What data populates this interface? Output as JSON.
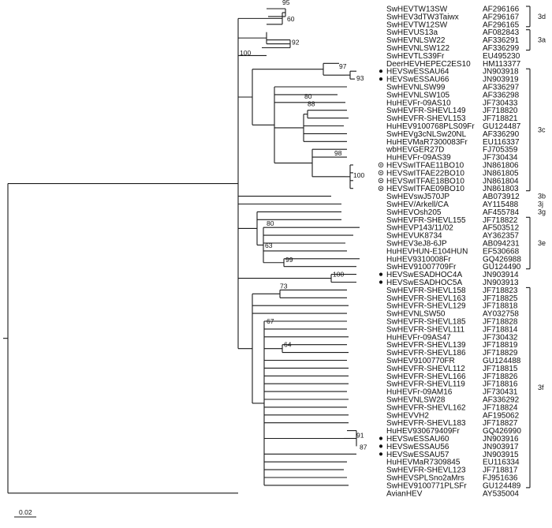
{
  "figure": {
    "scale_bar_label": "0.02"
  },
  "taxa": [
    {
      "name": "SwHEVTW13SW",
      "acc": "AF296166"
    },
    {
      "name": "SwHEV3dTW3Taiwx",
      "acc": "AF296167"
    },
    {
      "name": "SwHEVTW12SW",
      "acc": "AF296165"
    },
    {
      "name": "SwHEVUS13a",
      "acc": "AF082843"
    },
    {
      "name": "SwHEVNLSW22",
      "acc": "AF336291"
    },
    {
      "name": "SwHEVNLSW122",
      "acc": "AF336299"
    },
    {
      "name": "SwHEVTLS39Fr",
      "acc": "EU495230"
    },
    {
      "name": "DeerHEVHEPEC2ES10",
      "acc": "HM113377"
    },
    {
      "name": "HEVSwESSAU64",
      "acc": "JN903918",
      "mark": "dot"
    },
    {
      "name": "HEVSwESSAU66",
      "acc": "JN903919",
      "mark": "dot"
    },
    {
      "name": "SwHEVNLSW99",
      "acc": "AF336297"
    },
    {
      "name": "SwHEVNLSW105",
      "acc": "AF336298"
    },
    {
      "name": "HuHEVFr-09AS10",
      "acc": "JF730433"
    },
    {
      "name": "SwHEVFR-SHEVL149",
      "acc": "JF718820"
    },
    {
      "name": "SwHEVFR-SHEVL153",
      "acc": "JF718821"
    },
    {
      "name": "HuHEV9100768PLS09Fr",
      "acc": "GU124487"
    },
    {
      "name": "SwHEVg3cNLSw20NL",
      "acc": "AF336290"
    },
    {
      "name": "HuHEVMaR7300083Fr",
      "acc": "EU116337"
    },
    {
      "name": "wbHEVGER27D",
      "acc": "FJ705359"
    },
    {
      "name": "HuHEVFr-09AS39",
      "acc": "JF730434"
    },
    {
      "name": "HEVSwITFAE11BO10",
      "acc": "JN861806",
      "mark": "ring"
    },
    {
      "name": "HEVSwITFAE22BO10",
      "acc": "JN861805",
      "mark": "ring"
    },
    {
      "name": "HEVSwITFAE18BO10",
      "acc": "JN861804",
      "mark": "ring"
    },
    {
      "name": "HEVSwITFAE09BO10",
      "acc": "JN861803",
      "mark": "ring"
    },
    {
      "name": "SwHEVswJ570JP",
      "acc": "AB073912"
    },
    {
      "name": "SwHEV/Arkell/CA",
      "acc": "AY115488"
    },
    {
      "name": "SwHEVOsh205",
      "acc": "AF455784"
    },
    {
      "name": "SwHEVFR-SHEVL155",
      "acc": "JF718822"
    },
    {
      "name": "SwHEVP143/11/02",
      "acc": "AF503512"
    },
    {
      "name": "SwHEVUK8734",
      "acc": "AY362357"
    },
    {
      "name": "SwHEV3eJ8-6JP",
      "acc": "AB094231"
    },
    {
      "name": "HuHEVHUN-E104HUN",
      "acc": "EF530668"
    },
    {
      "name": "HuHEV9310008Fr",
      "acc": "GQ426988"
    },
    {
      "name": "SwHEV91007709Fr",
      "acc": "GU124490"
    },
    {
      "name": "HEVSwESADHOC4A",
      "acc": "JN903914",
      "mark": "dot"
    },
    {
      "name": "HEVSwESADHOC5A",
      "acc": "JN903913",
      "mark": "dot"
    },
    {
      "name": "SwHEVFR-SHEVL158",
      "acc": "JF718823"
    },
    {
      "name": "SwHEVFR-SHEVL163",
      "acc": "JF718825"
    },
    {
      "name": "SwHEVFR-SHEVL129",
      "acc": "JF718818"
    },
    {
      "name": "SwHEVNLSW50",
      "acc": "AY032758"
    },
    {
      "name": "SwHEVFR-SHEVL185",
      "acc": "JF718828"
    },
    {
      "name": "SwHEVFR-SHEVL111",
      "acc": "JF718814"
    },
    {
      "name": "HuHEVFr-09AS47",
      "acc": "JF730432"
    },
    {
      "name": "SwHEVFR-SHEVL139",
      "acc": "JF718819"
    },
    {
      "name": "SwHEVFR-SHEVL186",
      "acc": "JF718829"
    },
    {
      "name": "SwHEV9100770FR",
      "acc": "GU124488"
    },
    {
      "name": "SwHEVFR-SHEVL112",
      "acc": "JF718815"
    },
    {
      "name": "SwHEVFR-SHEVL166",
      "acc": "JF718826"
    },
    {
      "name": "SwHEVFR-SHEVL119",
      "acc": "JF718816"
    },
    {
      "name": "HuHEVFr-09AM16",
      "acc": "JF730431"
    },
    {
      "name": "SwHEVNLSW28",
      "acc": "AF336292"
    },
    {
      "name": "SwHEVFR-SHEVL162",
      "acc": "JF718824"
    },
    {
      "name": "SwHEVVH2",
      "acc": "AF195062"
    },
    {
      "name": "SwHEVFR-SHEVL183",
      "acc": "JF718827"
    },
    {
      "name": "HuHEV930679409Fr",
      "acc": "GQ426990"
    },
    {
      "name": "HEVSwESSAU60",
      "acc": "JN903916",
      "mark": "dot"
    },
    {
      "name": "HEVSwESSAU56",
      "acc": "JN903917",
      "mark": "dot"
    },
    {
      "name": "HEVSwESSAU57",
      "acc": "JN903915",
      "mark": "dot"
    },
    {
      "name": "HuHEVMaR7309845",
      "acc": "EU116334"
    },
    {
      "name": "SwHEVFR-SHEVL123",
      "acc": "JF718817"
    },
    {
      "name": "SwHEVSPLSno2aMrs",
      "acc": "FJ951636"
    },
    {
      "name": "SwHEV9100771PLSFr",
      "acc": "GU124489"
    },
    {
      "name": "AvianHEV",
      "acc": "AY535004"
    }
  ],
  "genotype_groups": [
    {
      "label": "3d",
      "first": 0,
      "last": 2
    },
    {
      "label": "3a",
      "first": 3,
      "last": 5
    },
    {
      "label": "3c",
      "first": 8,
      "last": 23
    },
    {
      "label": "3b",
      "first": 24,
      "last": 24
    },
    {
      "label": "3j",
      "first": 25,
      "last": 25
    },
    {
      "label": "3g",
      "first": 26,
      "last": 26
    },
    {
      "label": "3e",
      "first": 27,
      "last": 33
    },
    {
      "label": "3f",
      "first": 36,
      "last": 61
    }
  ],
  "bootstrap_values": [
    "95",
    "60",
    "92",
    "100",
    "97",
    "93",
    "80",
    "88",
    "98",
    "100",
    "80",
    "63",
    "99",
    "100",
    "73",
    "67",
    "64",
    "91",
    "87"
  ]
}
